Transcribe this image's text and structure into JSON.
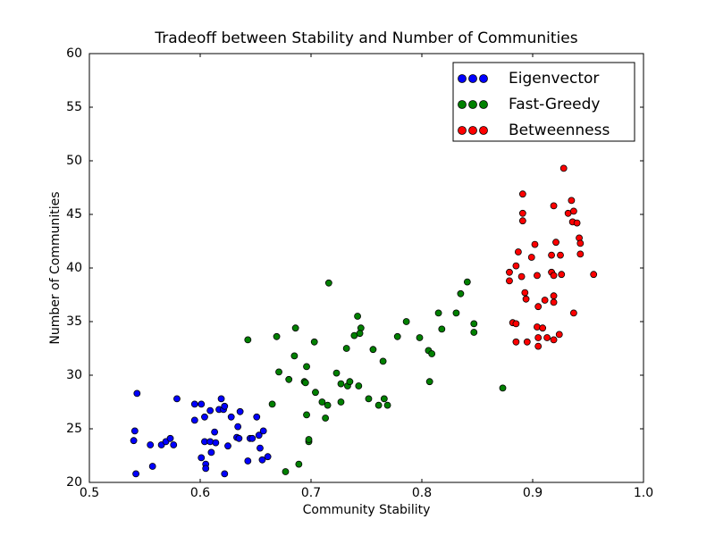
{
  "chart_data": {
    "type": "scatter",
    "title": "Tradeoff between Stability and Number of Communities",
    "x_label": "Community Stability",
    "y_label": "Number of Communities",
    "xlim": [
      0.5,
      1
    ],
    "ylim": [
      20,
      60
    ],
    "xticks": [
      0.5,
      0.6,
      0.7,
      0.8,
      0.9,
      {
        "value": 1,
        "label": "1.0"
      }
    ],
    "yticks": [
      20,
      25,
      30,
      35,
      40,
      45,
      50,
      55,
      60
    ],
    "grid": false,
    "legend": "upper right",
    "series": [
      {
        "name": "Eigenvector",
        "color": "#0000ff",
        "x": [
          0.543,
          0.541,
          0.54,
          0.542,
          0.555,
          0.557,
          0.565,
          0.569,
          0.573,
          0.576,
          0.579,
          0.595,
          0.595,
          0.601,
          0.601,
          0.604,
          0.604,
          0.605,
          0.605,
          0.609,
          0.609,
          0.61,
          0.613,
          0.614,
          0.617,
          0.619,
          0.621,
          0.622,
          0.622,
          0.625,
          0.628,
          0.633,
          0.634,
          0.635,
          0.636,
          0.643,
          0.645,
          0.647,
          0.651,
          0.653,
          0.654,
          0.657,
          0.656,
          0.661
        ],
        "values": [
          28.3,
          24.8,
          23.9,
          20.8,
          23.5,
          21.5,
          23.5,
          23.8,
          24.1,
          23.5,
          27.8,
          27.3,
          25.8,
          27.3,
          22.3,
          23.8,
          26.1,
          21.7,
          21.3,
          26.7,
          23.8,
          22.8,
          24.7,
          23.7,
          26.8,
          27.8,
          26.8,
          27.1,
          20.8,
          23.4,
          26.1,
          24.2,
          25.2,
          24.1,
          26.6,
          22.0,
          24.1,
          24.1,
          26.1,
          24.4,
          23.2,
          24.8,
          22.1,
          22.4
        ]
      },
      {
        "name": "Fast-Greedy",
        "color": "#008000",
        "x": [
          0.643,
          0.665,
          0.669,
          0.671,
          0.68,
          0.685,
          0.686,
          0.694,
          0.695,
          0.696,
          0.696,
          0.698,
          0.698,
          0.703,
          0.704,
          0.71,
          0.713,
          0.715,
          0.716,
          0.723,
          0.727,
          0.727,
          0.732,
          0.733,
          0.735,
          0.739,
          0.742,
          0.743,
          0.745,
          0.744,
          0.752,
          0.756,
          0.761,
          0.765,
          0.766,
          0.769,
          0.778,
          0.786,
          0.798,
          0.806,
          0.807,
          0.809,
          0.815,
          0.818,
          0.831,
          0.835,
          0.841,
          0.847,
          0.847,
          0.873,
          0.677,
          0.689
        ],
        "values": [
          33.3,
          27.3,
          33.6,
          30.3,
          29.6,
          31.8,
          34.4,
          29.4,
          29.3,
          30.8,
          26.3,
          23.8,
          24.0,
          33.1,
          28.4,
          27.5,
          26.0,
          27.2,
          38.6,
          30.2,
          27.5,
          29.2,
          32.5,
          29.0,
          29.4,
          33.7,
          35.5,
          29.0,
          34.4,
          33.9,
          27.8,
          32.4,
          27.2,
          31.3,
          27.8,
          27.2,
          33.6,
          35.0,
          33.5,
          32.3,
          29.4,
          32.0,
          35.8,
          34.3,
          35.8,
          37.6,
          38.7,
          34.8,
          34.0,
          28.8,
          21.0,
          21.7
        ]
      },
      {
        "name": "Betweenness",
        "color": "#ff0000",
        "x": [
          0.928,
          0.891,
          0.891,
          0.891,
          0.919,
          0.935,
          0.932,
          0.937,
          0.936,
          0.94,
          0.942,
          0.943,
          0.921,
          0.902,
          0.887,
          0.899,
          0.917,
          0.925,
          0.943,
          0.885,
          0.879,
          0.89,
          0.904,
          0.917,
          0.919,
          0.926,
          0.955,
          0.879,
          0.893,
          0.894,
          0.911,
          0.919,
          0.919,
          0.905,
          0.937,
          0.882,
          0.885,
          0.904,
          0.909,
          0.924,
          0.905,
          0.913,
          0.885,
          0.895,
          0.919,
          0.905
        ],
        "values": [
          49.3,
          46.9,
          45.1,
          44.4,
          45.8,
          46.3,
          45.1,
          45.3,
          44.3,
          44.2,
          42.8,
          42.3,
          42.4,
          42.2,
          41.5,
          41.0,
          41.2,
          41.2,
          41.3,
          40.2,
          39.6,
          39.2,
          39.3,
          39.6,
          39.3,
          39.4,
          39.4,
          38.8,
          37.7,
          37.1,
          37.0,
          37.4,
          36.8,
          36.4,
          35.8,
          34.9,
          34.8,
          34.5,
          34.4,
          33.8,
          33.5,
          33.5,
          33.1,
          33.1,
          33.3,
          32.7
        ]
      }
    ]
  }
}
